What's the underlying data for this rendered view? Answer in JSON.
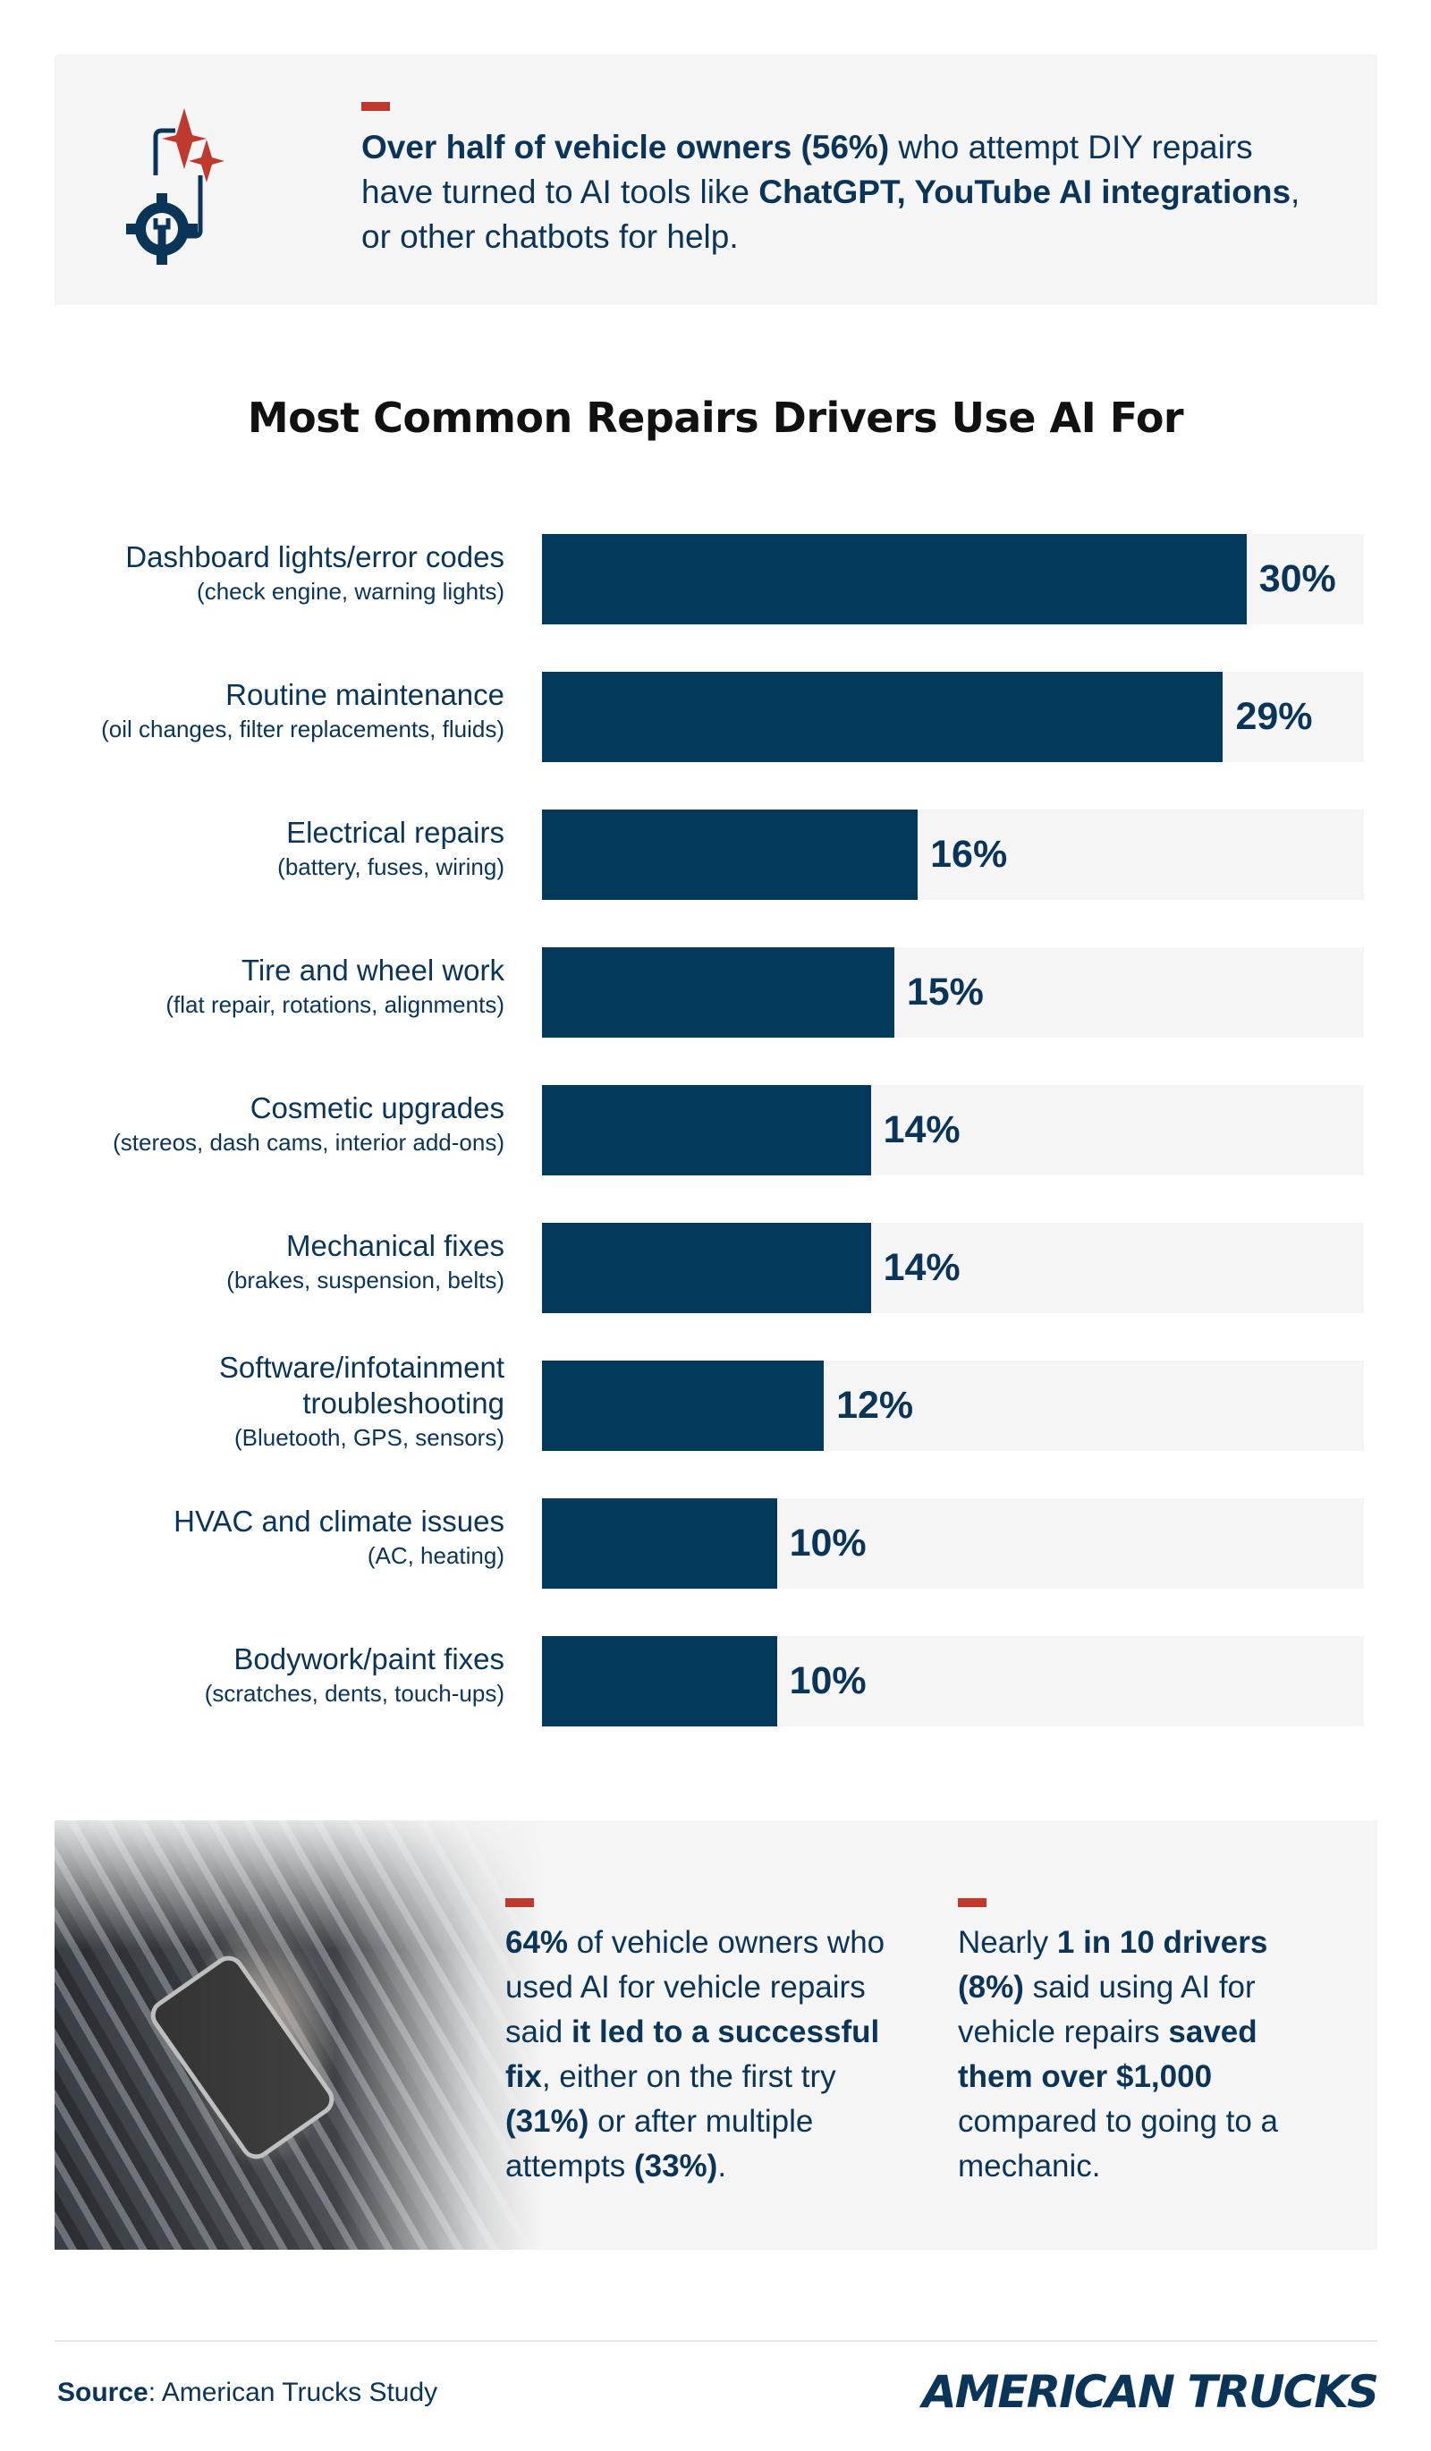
{
  "intro": {
    "parts": [
      {
        "t": "Over half of vehicle owners (56%)",
        "b": true
      },
      {
        "t": " who attempt DIY repairs have turned to AI tools like ",
        "b": false
      },
      {
        "t": "ChatGPT, YouTube AI integrations",
        "b": true
      },
      {
        "t": ", or other chatbots for help.",
        "b": false
      }
    ],
    "icon": "gear-wrench-sparkle-icon"
  },
  "chart_data": {
    "type": "bar",
    "orientation": "horizontal",
    "title": "Most Common Repairs Drivers Use AI For",
    "xlim": [
      0,
      35
    ],
    "bar_color": "#033a5c",
    "track_color": "#f5f5f5",
    "categories": [
      {
        "label": "Dashboard lights/error codes",
        "sub": "(check engine, warning lights)"
      },
      {
        "label": "Routine maintenance",
        "sub": "(oil changes, filter replacements, fluids)"
      },
      {
        "label": "Electrical repairs",
        "sub": "(battery, fuses, wiring)"
      },
      {
        "label": "Tire and wheel work",
        "sub": "(flat repair, rotations, alignments)"
      },
      {
        "label": "Cosmetic upgrades",
        "sub": "(stereos, dash cams, interior add-ons)"
      },
      {
        "label": "Mechanical fixes",
        "sub": "(brakes, suspension, belts)"
      },
      {
        "label": "Software/infotainment troubleshooting",
        "sub": "(Bluetooth, GPS, sensors)"
      },
      {
        "label": "HVAC and climate issues",
        "sub": "(AC, heating)"
      },
      {
        "label": "Bodywork/paint fixes",
        "sub": "(scratches, dents, touch-ups)"
      }
    ],
    "values": [
      30,
      29,
      16,
      15,
      14,
      14,
      12,
      10,
      10
    ],
    "value_labels": [
      "30%",
      "29%",
      "16%",
      "15%",
      "14%",
      "14%",
      "12%",
      "10%",
      "10%"
    ]
  },
  "stats": [
    {
      "parts": [
        {
          "t": "64%",
          "b": true
        },
        {
          "t": " of vehicle owners who used AI for vehicle repairs said ",
          "b": false
        },
        {
          "t": "it led to a successful fix",
          "b": true
        },
        {
          "t": ", either on the first try ",
          "b": false
        },
        {
          "t": "(31%)",
          "b": true
        },
        {
          "t": " or after multiple attempts ",
          "b": false
        },
        {
          "t": "(33%)",
          "b": true
        },
        {
          "t": ".",
          "b": false
        }
      ]
    },
    {
      "parts": [
        {
          "t": "Nearly ",
          "b": false
        },
        {
          "t": "1 in 10 drivers (8%)",
          "b": true
        },
        {
          "t": " said using AI for vehicle repairs ",
          "b": false
        },
        {
          "t": "saved them over $1,000",
          "b": true
        },
        {
          "t": " compared to going to a mechanic.",
          "b": false
        }
      ]
    }
  ],
  "footer": {
    "source_label": "Source",
    "source_text": ": American Trucks Study",
    "logo": "AMERICAN TRUCKS"
  },
  "colors": {
    "navy": "#0b3558",
    "red": "#c0392f",
    "panel": "#f5f5f5"
  }
}
